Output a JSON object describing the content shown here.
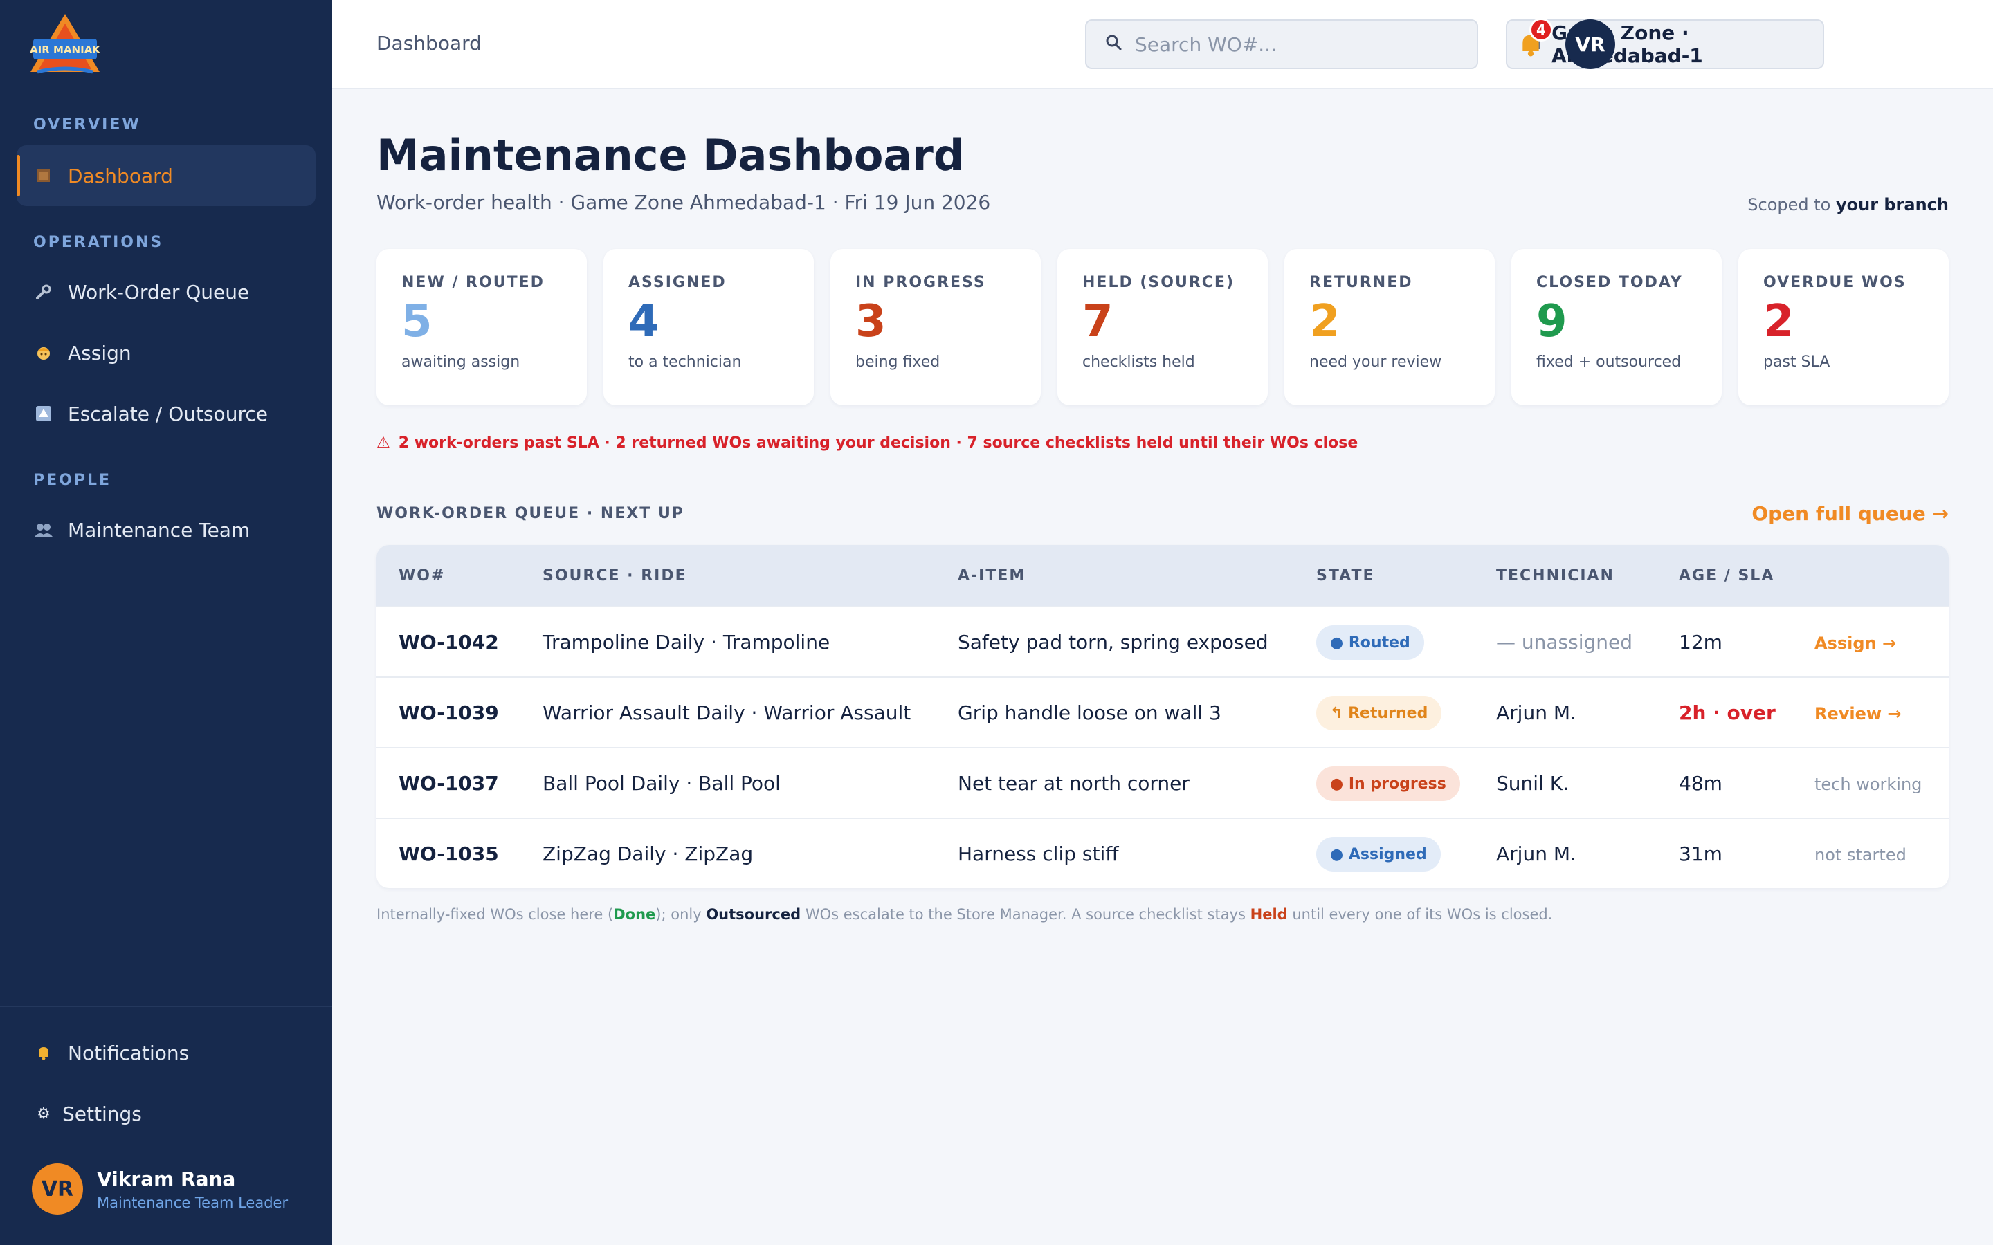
{
  "sidebar": {
    "logo_text": "AIR MANIAK",
    "sections": [
      "OVERVIEW",
      "OPERATIONS",
      "PEOPLE"
    ],
    "items": [
      {
        "label": "Dashboard",
        "icon": "grid-icon",
        "active": true
      },
      {
        "label": "Work-Order Queue",
        "icon": "wrench-icon"
      },
      {
        "label": "Assign",
        "icon": "worker-icon"
      },
      {
        "label": "Escalate / Outsource",
        "icon": "escalate-icon"
      },
      {
        "label": "Maintenance Team",
        "icon": "team-icon"
      }
    ],
    "bottom_items": [
      {
        "label": "Notifications",
        "icon": "bell-icon"
      },
      {
        "label": "Settings",
        "icon": "gear-icon"
      }
    ],
    "user": {
      "initials": "VR",
      "name": "Vikram Rana",
      "role": "Maintenance Team Leader"
    }
  },
  "topbar": {
    "breadcrumb": "Dashboard",
    "search_placeholder": "Search WO#...",
    "branch": "Game Zone · Ahmedabad-1",
    "notification_count": "4",
    "avatar_initials": "VR"
  },
  "page": {
    "title": "Maintenance Dashboard",
    "subtitle": "Work-order health · Game Zone Ahmedabad-1 · Fri 19 Jun 2026",
    "scope_prefix": "Scoped to ",
    "scope_value": "your branch"
  },
  "kpis": [
    {
      "label": "NEW / ROUTED",
      "value": "5",
      "note": "awaiting assign",
      "color": "#7fb0e6"
    },
    {
      "label": "ASSIGNED",
      "value": "4",
      "note": "to a technician",
      "color": "#2f6bb8"
    },
    {
      "label": "IN PROGRESS",
      "value": "3",
      "note": "being fixed",
      "color": "#c9421a"
    },
    {
      "label": "HELD (SOURCE)",
      "value": "7",
      "note": "checklists held",
      "color": "#c9421a"
    },
    {
      "label": "RETURNED",
      "value": "2",
      "note": "need your review",
      "color": "#f0a020"
    },
    {
      "label": "CLOSED TODAY",
      "value": "9",
      "note": "fixed + outsourced",
      "color": "#1f9a4e"
    },
    {
      "label": "OVERDUE WOS",
      "value": "2",
      "note": "past SLA",
      "color": "#d8222a"
    }
  ],
  "alert": "2 work-orders past SLA · 2 returned WOs awaiting your decision · 7 source checklists held until their WOs close",
  "queue": {
    "heading": "WORK-ORDER QUEUE · NEXT UP",
    "open_link": "Open full queue →",
    "columns": [
      "WO#",
      "SOURCE · RIDE",
      "A-ITEM",
      "STATE",
      "TECHNICIAN",
      "AGE / SLA"
    ],
    "rows": [
      {
        "wo": "WO-1042",
        "source": "Trampoline Daily · Trampoline",
        "item": "Safety pad torn, spring exposed",
        "state": "● Routed",
        "state_bg": "#e3ecf8",
        "state_fg": "#2f6bb8",
        "tech": "— unassigned",
        "tech_muted": true,
        "age": "12m",
        "age_over": false,
        "action": "Assign →",
        "action_link": true
      },
      {
        "wo": "WO-1039",
        "source": "Warrior Assault Daily · Warrior Assault",
        "item": "Grip handle loose on wall 3",
        "state": "↰ Returned",
        "state_bg": "#fdf0df",
        "state_fg": "#e0841a",
        "tech": "Arjun M.",
        "tech_muted": false,
        "age": "2h · over",
        "age_over": true,
        "action": "Review →",
        "action_link": true
      },
      {
        "wo": "WO-1037",
        "source": "Ball Pool Daily · Ball Pool",
        "item": "Net tear at north corner",
        "state": "● In progress",
        "state_bg": "#fbe3da",
        "state_fg": "#c9421a",
        "tech": "Sunil K.",
        "tech_muted": false,
        "age": "48m",
        "age_over": false,
        "action": "tech working",
        "action_link": false
      },
      {
        "wo": "WO-1035",
        "source": "ZipZag Daily · ZipZag",
        "item": "Harness clip stiff",
        "state": "● Assigned",
        "state_bg": "#e3ecf8",
        "state_fg": "#2f6bb8",
        "tech": "Arjun M.",
        "tech_muted": false,
        "age": "31m",
        "age_over": false,
        "action": "not started",
        "action_link": false
      }
    ]
  },
  "footnote": {
    "p1": "Internally-fixed WOs close here (",
    "done": "Done",
    "p2": "); only ",
    "outsourced": "Outsourced",
    "p3": " WOs escalate to the Store Manager. A source checklist stays ",
    "held": "Held",
    "p4": " until every one of its WOs is closed."
  }
}
